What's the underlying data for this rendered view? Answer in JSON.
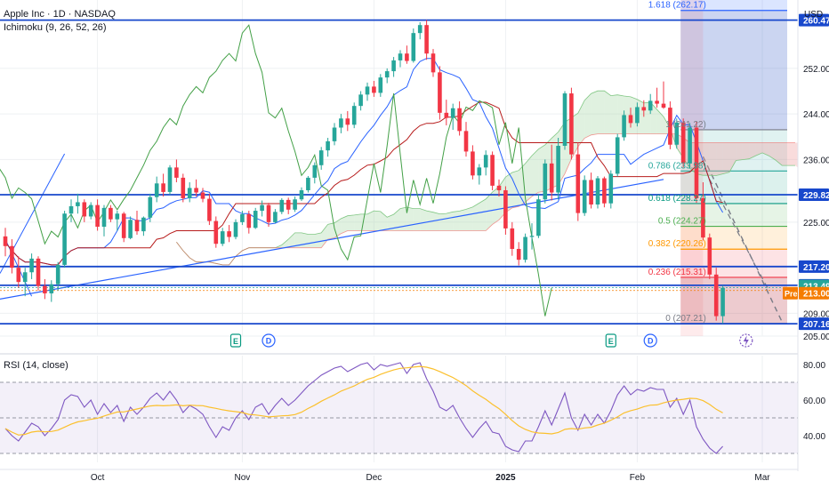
{
  "header": {
    "symbol_line": "Apple Inc · 1D · NASDAQ",
    "indicator_line": "Ichimoku (9, 26, 52, 26)",
    "currency": "USD"
  },
  "rsi_panel": {
    "label": "RSI (14, close)"
  },
  "chart_data": {
    "type": "candlestick",
    "price_axis": {
      "ylim": [
        205,
        264
      ],
      "ticks": [
        "252.00",
        "244.00",
        "236.00",
        "225.00",
        "209.00",
        "205.00"
      ]
    },
    "x_ticks": [
      {
        "label": "Oct",
        "index": 14
      },
      {
        "label": "Nov",
        "index": 36
      },
      {
        "label": "Dec",
        "index": 56
      },
      {
        "label": "2025",
        "index": 76
      },
      {
        "label": "Feb",
        "index": 96
      },
      {
        "label": "Mar",
        "index": 115
      }
    ],
    "horizontal_levels": [
      {
        "price": 260.47,
        "label": "260.47"
      },
      {
        "price": 229.82,
        "label": "229.82"
      },
      {
        "price": 217.2,
        "label": "217.20"
      },
      {
        "price": 213.92,
        "label": "213.92"
      },
      {
        "price": 207.16,
        "label": "207.16"
      }
    ],
    "axis_badges": [
      {
        "label": "213.49",
        "price": 213.49,
        "color": "#26a69a"
      },
      {
        "label": "213.00",
        "price": 213.0,
        "color": "#f57c00",
        "tag": "Pre"
      }
    ],
    "fibonacci": {
      "levels": [
        {
          "label": "1.618 (262.17)",
          "price": 262.17,
          "color": "#2962ff"
        },
        {
          "label": "1 (241.22)",
          "price": 241.22,
          "color": "#787b86"
        },
        {
          "label": "0.786 (233.98)",
          "price": 233.98,
          "color": "#26a69a"
        },
        {
          "label": "0.618 (228.27)",
          "price": 228.27,
          "color": "#089981"
        },
        {
          "label": "0.5 (224.27)",
          "price": 224.27,
          "color": "#4caf50"
        },
        {
          "label": "0.382 (220.26)",
          "price": 220.26,
          "color": "#ff9800"
        },
        {
          "label": "0.236 (215.31)",
          "price": 215.31,
          "color": "#f23645"
        },
        {
          "label": "0 (207.21)",
          "price": 207.21,
          "color": "#787b86"
        }
      ]
    },
    "events": [
      {
        "type": "earnings",
        "label": "E",
        "index": 35
      },
      {
        "type": "dividend",
        "label": "D",
        "index": 40
      },
      {
        "type": "earnings",
        "label": "E",
        "index": 92
      },
      {
        "type": "dividend",
        "label": "D",
        "index": 98
      }
    ],
    "candles": [
      [
        0,
        222.5,
        224,
        219,
        220.8
      ],
      [
        1,
        220.8,
        222,
        216,
        217
      ],
      [
        2,
        217,
        219,
        213.5,
        214.5
      ],
      [
        3,
        214.5,
        217,
        212,
        216.2
      ],
      [
        4,
        216.2,
        219.5,
        215,
        218.6
      ],
      [
        5,
        218.6,
        219,
        213,
        213.8
      ],
      [
        6,
        213.8,
        215,
        211.5,
        212.5
      ],
      [
        7,
        212.5,
        214.8,
        211,
        214.1
      ],
      [
        8,
        214.1,
        218,
        213,
        217.5
      ],
      [
        9,
        217.5,
        227,
        217,
        226.5
      ],
      [
        10,
        226.5,
        229,
        225,
        227.8
      ],
      [
        11,
        227.8,
        230,
        226.5,
        228.5
      ],
      [
        12,
        228.5,
        229,
        225,
        226
      ],
      [
        13,
        226,
        228.5,
        225.5,
        228
      ],
      [
        14,
        228,
        229,
        223.5,
        224.2
      ],
      [
        15,
        224.2,
        228,
        222.5,
        227.5
      ],
      [
        16,
        227.5,
        228,
        225,
        225.5
      ],
      [
        17,
        225.5,
        227,
        223.5,
        226.5
      ],
      [
        18,
        226.5,
        226.8,
        221.5,
        222.2
      ],
      [
        19,
        222.2,
        226,
        222,
        225.4
      ],
      [
        20,
        225.4,
        227,
        222.8,
        223.4
      ],
      [
        21,
        223.4,
        226,
        222.6,
        225.8
      ],
      [
        22,
        225.8,
        230,
        225,
        229.4
      ],
      [
        23,
        229.4,
        233,
        228.5,
        231.8
      ],
      [
        24,
        231.8,
        233.5,
        229.5,
        230.3
      ],
      [
        25,
        230.3,
        235,
        229.8,
        234.6
      ],
      [
        26,
        234.6,
        236,
        232,
        232.8
      ],
      [
        27,
        232.8,
        233.5,
        228.5,
        229.2
      ],
      [
        28,
        229.2,
        232,
        228.5,
        231
      ],
      [
        29,
        231,
        232.5,
        229.5,
        230.2
      ],
      [
        30,
        230.2,
        231,
        228.5,
        229.1
      ],
      [
        31,
        229.1,
        230,
        224.5,
        225.2
      ],
      [
        32,
        225.2,
        226,
        220.5,
        221.2
      ],
      [
        33,
        221.2,
        224,
        220.8,
        223.4
      ],
      [
        34,
        223.4,
        224.5,
        221.5,
        222.4
      ],
      [
        35,
        222.4,
        225.5,
        222,
        225
      ],
      [
        36,
        225,
        227,
        224.5,
        226.4
      ],
      [
        37,
        226.4,
        227,
        223,
        224
      ],
      [
        38,
        224,
        227.5,
        223.8,
        227
      ],
      [
        39,
        227,
        228.8,
        226,
        228
      ],
      [
        40,
        228,
        228.4,
        224.2,
        225
      ],
      [
        41,
        225,
        227.3,
        224.8,
        226.8
      ],
      [
        42,
        226.8,
        229.2,
        226.4,
        228.9
      ],
      [
        43,
        228.9,
        229.3,
        226.4,
        227.2
      ],
      [
        44,
        227.2,
        229.5,
        226.8,
        229
      ],
      [
        45,
        229,
        231.1,
        228.7,
        230.6
      ],
      [
        46,
        230.6,
        233.1,
        230.2,
        232.8
      ],
      [
        47,
        232.8,
        235.5,
        231.8,
        235
      ],
      [
        48,
        235,
        238.2,
        234.2,
        237.6
      ],
      [
        49,
        237.6,
        239.8,
        236.5,
        239.2
      ],
      [
        50,
        239.2,
        242.4,
        238.5,
        241.6
      ],
      [
        51,
        241.6,
        244,
        240.6,
        243.2
      ],
      [
        52,
        243.2,
        244.5,
        241,
        242.1
      ],
      [
        53,
        242.1,
        246,
        241.5,
        245.4
      ],
      [
        54,
        245.4,
        248,
        244.6,
        247.4
      ],
      [
        55,
        247.4,
        249.5,
        246.3,
        248.8
      ],
      [
        56,
        248.8,
        249.8,
        247,
        247.7
      ],
      [
        57,
        247.7,
        251,
        247,
        250.4
      ],
      [
        58,
        250.4,
        252,
        249.4,
        251.5
      ],
      [
        59,
        251.5,
        254,
        250.5,
        253.4
      ],
      [
        60,
        253.4,
        255.2,
        252.2,
        254.6
      ],
      [
        61,
        254.6,
        256,
        252.8,
        253.3
      ],
      [
        62,
        253.3,
        259,
        253,
        258.2
      ],
      [
        63,
        258.2,
        260.1,
        257.1,
        259.6
      ],
      [
        64,
        259.6,
        260.5,
        253.5,
        254.6
      ],
      [
        65,
        254.6,
        255.4,
        250.5,
        251.3
      ],
      [
        66,
        251.3,
        252.4,
        243,
        244.2
      ],
      [
        67,
        244.2,
        246.5,
        242,
        243.3
      ],
      [
        68,
        243.3,
        245.8,
        241.2,
        245
      ],
      [
        69,
        245,
        246.2,
        240.2,
        241
      ],
      [
        70,
        241,
        242.6,
        236.5,
        237.4
      ],
      [
        71,
        237.4,
        238.5,
        232.5,
        233.2
      ],
      [
        72,
        233.2,
        235.2,
        231.6,
        234.6
      ],
      [
        73,
        234.6,
        237.6,
        233.2,
        236.8
      ],
      [
        74,
        236.8,
        237.4,
        230.6,
        231.4
      ],
      [
        75,
        231.4,
        232.5,
        229.5,
        230.6
      ],
      [
        76,
        230.6,
        231.3,
        222.8,
        223.9
      ],
      [
        77,
        223.9,
        225,
        219.1,
        220.3
      ],
      [
        78,
        220.3,
        221.5,
        217.4,
        218.4
      ],
      [
        79,
        218.4,
        223,
        217.9,
        222.4
      ],
      [
        80,
        222.4,
        224.8,
        220.2,
        222.6
      ],
      [
        81,
        222.6,
        230,
        222.2,
        229
      ],
      [
        82,
        229,
        236,
        228.3,
        235.3
      ],
      [
        83,
        235.3,
        238.6,
        228.8,
        230.2
      ],
      [
        84,
        230.2,
        239.8,
        229,
        238.4
      ],
      [
        85,
        238.4,
        248,
        237.7,
        247.6
      ],
      [
        86,
        247.6,
        248.6,
        236,
        236.9
      ],
      [
        87,
        236.9,
        239,
        225.2,
        226.6
      ],
      [
        88,
        226.6,
        233.2,
        226.1,
        232.4
      ],
      [
        89,
        232.4,
        233.7,
        227.4,
        228.1
      ],
      [
        90,
        228.1,
        233.1,
        227.4,
        232.7
      ],
      [
        91,
        232.7,
        233,
        227.6,
        228.3
      ],
      [
        92,
        228.3,
        234.1,
        227.4,
        233.5
      ],
      [
        93,
        233.5,
        240.5,
        233,
        239.9
      ],
      [
        94,
        239.9,
        244.6,
        239.3,
        243.8
      ],
      [
        95,
        243.8,
        245.1,
        241.6,
        242.4
      ],
      [
        96,
        242.4,
        246,
        241.8,
        245.2
      ],
      [
        97,
        245.2,
        246.4,
        243.5,
        244.6
      ],
      [
        98,
        244.6,
        247.5,
        244,
        246.3
      ],
      [
        99,
        246.3,
        248.6,
        245.1,
        245.8
      ],
      [
        100,
        245.8,
        249.7,
        244.9,
        245.1
      ],
      [
        101,
        245.1,
        246.2,
        237.8,
        238.6
      ],
      [
        102,
        238.6,
        243.2,
        237.9,
        242.5
      ],
      [
        103,
        242.5,
        243.2,
        234.6,
        235.3
      ],
      [
        104,
        235.3,
        242.4,
        234.4,
        241.6
      ],
      [
        105,
        241.6,
        242.6,
        228.4,
        229.2
      ],
      [
        106,
        229.2,
        232,
        221.8,
        222.3
      ],
      [
        107,
        222.3,
        223,
        215,
        215.8
      ],
      [
        108,
        215.8,
        217,
        207.7,
        208.5
      ],
      [
        109,
        208.5,
        213.9,
        207.2,
        213.49
      ]
    ],
    "ichimoku": {
      "tenkan_color": "#2962ff",
      "kijun_color": "#b71c1c",
      "chikou_color": "#43a047",
      "cloud_bull_color": "#a5d6a7",
      "cloud_bear_color": "#ef9a9a",
      "span_b_color": "#ef5350"
    },
    "rsi": {
      "ylim": [
        25,
        85
      ],
      "ticks": [
        "80.00",
        "60.00",
        "40.00"
      ],
      "band": [
        30,
        70
      ],
      "mid": 50,
      "line_color": "#7e57c2",
      "ma_color": "#fbc02d",
      "values": [
        44,
        40,
        37,
        42,
        47,
        45,
        40,
        44,
        49,
        60,
        63,
        62,
        56,
        60,
        52,
        58,
        53,
        57,
        48,
        56,
        52,
        56,
        61,
        64,
        60,
        65,
        60,
        53,
        57,
        55,
        52,
        45,
        39,
        45,
        43,
        50,
        54,
        49,
        56,
        58,
        52,
        57,
        61,
        57,
        60,
        64,
        68,
        71,
        74,
        76,
        78,
        79,
        76,
        78,
        80,
        81,
        77,
        80,
        79,
        80,
        81,
        75,
        80,
        81,
        72,
        65,
        56,
        54,
        57,
        50,
        44,
        39,
        44,
        48,
        42,
        41,
        34,
        32,
        31,
        37,
        37,
        45,
        54,
        46,
        55,
        64,
        50,
        43,
        52,
        46,
        52,
        47,
        54,
        63,
        68,
        63,
        66,
        65,
        67,
        66,
        66,
        56,
        61,
        52,
        60,
        45,
        38,
        33,
        30,
        34
      ]
    },
    "colors": {
      "up": "#26a69a",
      "down": "#f23645"
    }
  }
}
